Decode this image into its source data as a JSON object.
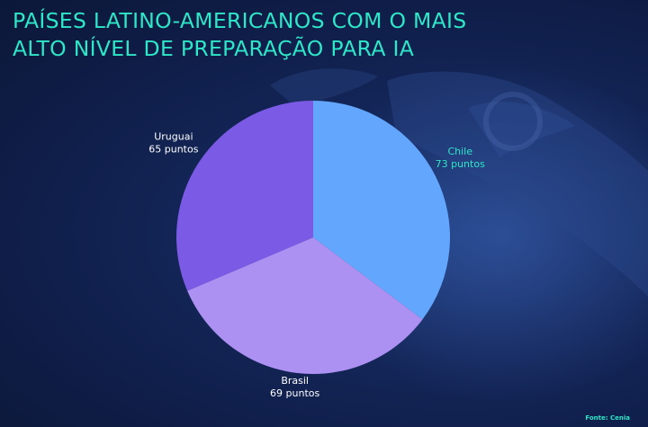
{
  "title": {
    "line1": "PAÍSES LATINO-AMERICANOS COM O MAIS",
    "line2": "ALTO NÍVEL DE PREPARAÇÃO PARA IA"
  },
  "source": "Fonte: Cenia",
  "colors": {
    "accent": "#2ee6c8",
    "background": "#132a5c"
  },
  "chart_data": {
    "type": "pie",
    "categories": [
      "Chile",
      "Brasil",
      "Uruguai"
    ],
    "values": [
      73,
      69,
      65
    ],
    "value_labels": [
      "73 puntos",
      "69 puntos",
      "65 puntos"
    ],
    "colors": [
      "#62a7fd",
      "#ac91f3",
      "#7b5be6"
    ],
    "label_colors": [
      "#2ee6c8",
      "#ffffff",
      "#ffffff"
    ],
    "start": "top",
    "direction": "clockwise"
  }
}
